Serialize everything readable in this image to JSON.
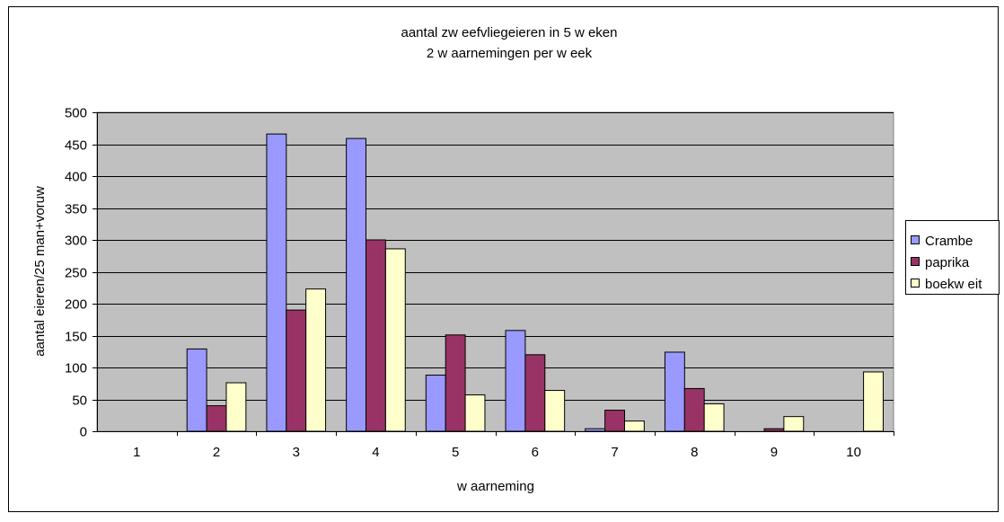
{
  "chart_data": {
    "type": "bar",
    "title_lines": [
      "aantal zw eefvliegeieren in 5 w eken",
      "2 w aarnemingen per w eek"
    ],
    "xlabel": "w aarneming",
    "ylabel": "aantal eieren/25 man+voruw",
    "categories": [
      "1",
      "2",
      "3",
      "4",
      "5",
      "6",
      "7",
      "8",
      "9",
      "10"
    ],
    "ylim": [
      0,
      500
    ],
    "yticks": [
      0,
      50,
      100,
      150,
      200,
      250,
      300,
      350,
      400,
      450,
      500
    ],
    "grid": true,
    "legend_position": "right",
    "plot_background": "#c0c0c0",
    "series": [
      {
        "name": "Crambe",
        "color": "#9999ff",
        "values": [
          0,
          129,
          466,
          459,
          88,
          158,
          4,
          124,
          0,
          0
        ]
      },
      {
        "name": "paprika",
        "color": "#993366",
        "values": [
          0,
          40,
          190,
          300,
          151,
          120,
          33,
          67,
          4,
          0
        ]
      },
      {
        "name": "boekw eit",
        "color": "#ffffcc",
        "values": [
          0,
          76,
          223,
          286,
          57,
          64,
          16,
          43,
          23,
          93
        ]
      }
    ]
  }
}
